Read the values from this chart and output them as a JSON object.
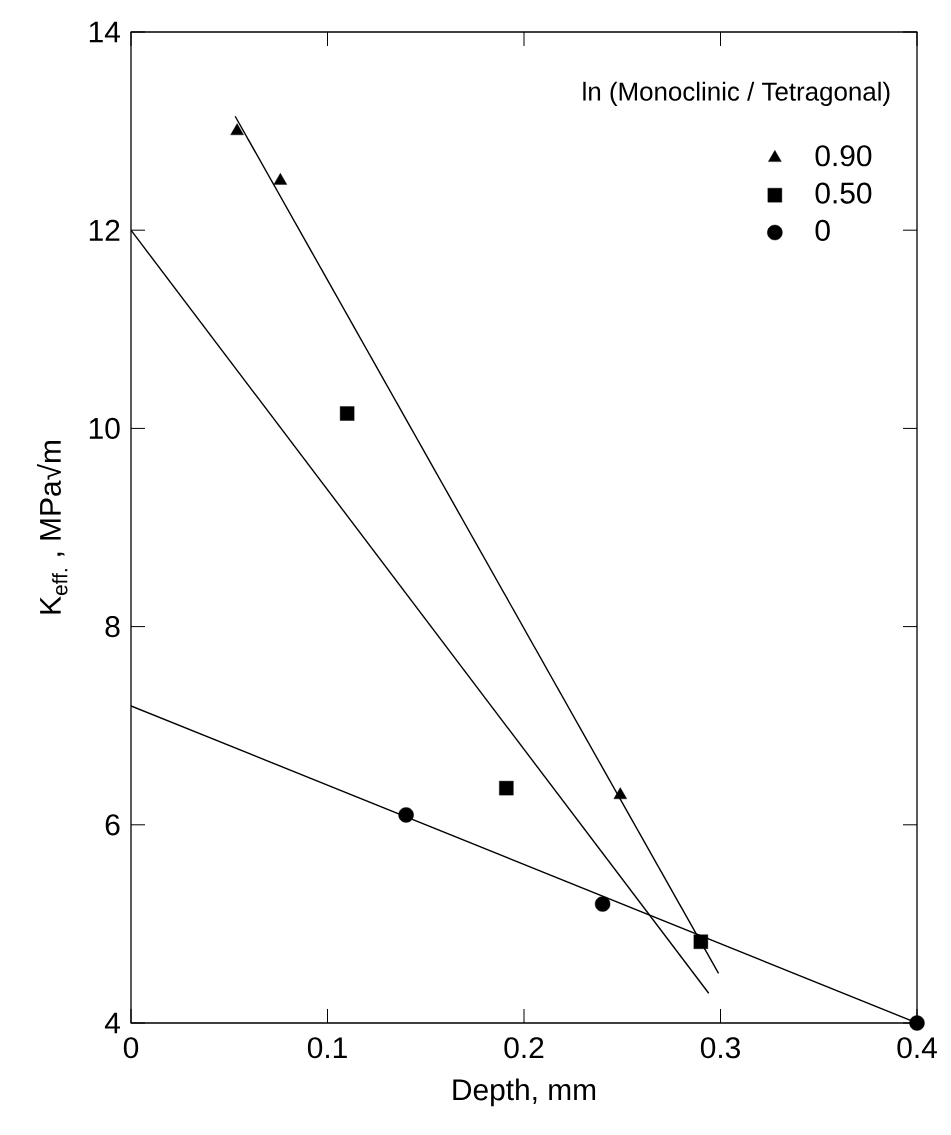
{
  "chart_data": {
    "type": "scatter",
    "xlabel": "Depth, mm",
    "ylabel": "K$_{eff.}$ , MPa√m",
    "legend_title": "ln (Monoclinic / Tetragonal)",
    "legend": "top right",
    "xlim": [
      0,
      0.4
    ],
    "ylim": [
      4,
      14
    ],
    "xticks": [
      0,
      0.1,
      0.2,
      0.3,
      0.4
    ],
    "yticks": [
      4,
      6,
      8,
      10,
      12,
      14
    ],
    "grid": false,
    "series": [
      {
        "name": "0.90",
        "marker": "triangle",
        "color": "#000000",
        "x": [
          0.054,
          0.076,
          0.249
        ],
        "values": [
          13.0,
          12.5,
          6.3
        ]
      },
      {
        "name": "0.50",
        "marker": "square",
        "color": "#000000",
        "x": [
          0.11,
          0.191,
          0.29
        ],
        "values": [
          10.15,
          6.37,
          4.82
        ]
      },
      {
        "name": "0",
        "marker": "circle",
        "color": "#000000",
        "x": [
          0.14,
          0.24,
          0.4
        ],
        "values": [
          6.1,
          5.2,
          4.0
        ]
      },
      {
        "type": "line",
        "marker": "none",
        "color": "#000000",
        "x": [
          0.053,
          0.299
        ],
        "values": [
          13.15,
          4.5
        ]
      },
      {
        "type": "line",
        "marker": "none",
        "color": "#000000",
        "x": [
          0,
          0.294
        ],
        "values": [
          12.0,
          4.3
        ]
      },
      {
        "type": "line",
        "marker": "none",
        "color": "#000000",
        "x": [
          0,
          0.4
        ],
        "values": [
          7.2,
          4.0
        ]
      }
    ]
  }
}
